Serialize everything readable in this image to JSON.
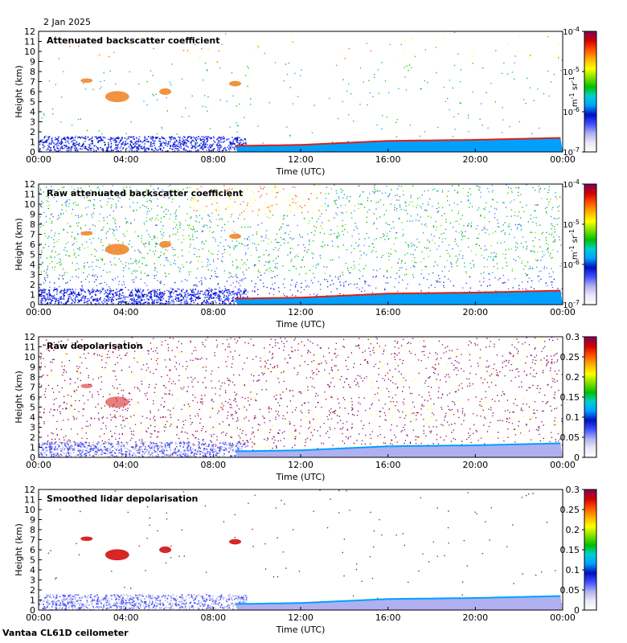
{
  "figure": {
    "date_label": "2 Jan 2025",
    "footer_label": "Vantaa CL61D ceilometer"
  },
  "colors": {
    "colormap": [
      "#ffffff",
      "#e8e8f8",
      "#b0b0f0",
      "#4050ff",
      "#0010c0",
      "#00a0ff",
      "#00d0d0",
      "#00c000",
      "#80e000",
      "#ffff00",
      "#ffb000",
      "#ff5000",
      "#d00000",
      "#800060"
    ],
    "cloud_red": "#e02010",
    "aerosol_orange": "#f08020"
  },
  "chart_data": [
    {
      "type": "heatmap",
      "title": "Attenuated backscatter coefficient",
      "xlabel": "Time (UTC)",
      "ylabel": "Height (km)",
      "x_ticks": [
        "00:00",
        "04:00",
        "08:00",
        "12:00",
        "16:00",
        "20:00",
        "00:00"
      ],
      "xlim_hours": [
        0,
        24
      ],
      "ylim": [
        0,
        12
      ],
      "y_ticks": [
        "0",
        "1",
        "2",
        "3",
        "4",
        "5",
        "6",
        "7",
        "8",
        "9",
        "10",
        "11",
        "12"
      ],
      "colorbar": {
        "scale": "log",
        "range": [
          1e-07,
          0.0001
        ],
        "ticks": [
          "10-7",
          "10-6",
          "10-5",
          "10-4"
        ],
        "tick_bases": [
          "10",
          "10",
          "10",
          "10"
        ],
        "tick_exps": [
          "-7",
          "-6",
          "-5",
          "-4"
        ],
        "unit": "m-1 sr-1",
        "unit_parts": [
          "m",
          "-1",
          " sr",
          "-1"
        ]
      },
      "noise_density": 0.12,
      "background": "white"
    },
    {
      "type": "heatmap",
      "title": "Raw attenuated backscatter coefficient",
      "xlabel": "Time (UTC)",
      "ylabel": "Height (km)",
      "x_ticks": [
        "00:00",
        "04:00",
        "08:00",
        "12:00",
        "16:00",
        "20:00",
        "00:00"
      ],
      "xlim_hours": [
        0,
        24
      ],
      "ylim": [
        0,
        12
      ],
      "y_ticks": [
        "0",
        "1",
        "2",
        "3",
        "4",
        "5",
        "6",
        "7",
        "8",
        "9",
        "10",
        "11",
        "12"
      ],
      "colorbar": {
        "scale": "log",
        "range": [
          1e-07,
          0.0001
        ],
        "ticks": [
          "10-7",
          "10-6",
          "10-5",
          "10-4"
        ],
        "tick_bases": [
          "10",
          "10",
          "10",
          "10"
        ],
        "tick_exps": [
          "-7",
          "-6",
          "-5",
          "-4"
        ],
        "unit": "m-1 sr-1",
        "unit_parts": [
          "m",
          "-1",
          " sr",
          "-1"
        ]
      },
      "noise_density": 0.95,
      "background": "noise"
    },
    {
      "type": "heatmap",
      "title": "Raw depolarisation",
      "xlabel": "Time (UTC)",
      "ylabel": "Height (km)",
      "x_ticks": [
        "00:00",
        "04:00",
        "08:00",
        "12:00",
        "16:00",
        "20:00",
        "00:00"
      ],
      "xlim_hours": [
        0,
        24
      ],
      "ylim": [
        0,
        12
      ],
      "y_ticks": [
        "0",
        "1",
        "2",
        "3",
        "4",
        "5",
        "6",
        "7",
        "8",
        "9",
        "10",
        "11",
        "12"
      ],
      "colorbar": {
        "scale": "linear",
        "range": [
          0,
          0.3
        ],
        "ticks": [
          "0",
          "0.05",
          "0.1",
          "0.15",
          "0.2",
          "0.25",
          "0.3"
        ]
      },
      "noise_density": 0.85,
      "background": "purple-noise"
    },
    {
      "type": "heatmap",
      "title": "Smoothed lidar depolarisation",
      "xlabel": "Time (UTC)",
      "ylabel": "Height (km)",
      "x_ticks": [
        "00:00",
        "04:00",
        "08:00",
        "12:00",
        "16:00",
        "20:00",
        "00:00"
      ],
      "xlim_hours": [
        0,
        24
      ],
      "ylim": [
        0,
        12
      ],
      "y_ticks": [
        "0",
        "1",
        "2",
        "3",
        "4",
        "5",
        "6",
        "7",
        "8",
        "9",
        "10",
        "11",
        "12"
      ],
      "colorbar": {
        "scale": "linear",
        "range": [
          0,
          0.3
        ],
        "ticks": [
          "0",
          "0.05",
          "0.1",
          "0.15",
          "0.2",
          "0.25",
          "0.3"
        ]
      },
      "noise_density": 0.05,
      "background": "white"
    }
  ],
  "features": {
    "cloud_layer_km": [
      [
        0,
        0.0
      ],
      [
        9,
        0.6
      ],
      [
        12,
        0.7
      ],
      [
        16,
        1.1
      ],
      [
        20,
        1.2
      ],
      [
        24,
        1.4
      ]
    ],
    "aerosol_patches": [
      {
        "t": 3.6,
        "h": 5.5,
        "dt": 1.0,
        "dh": 1.0
      },
      {
        "t": 2.2,
        "h": 7.1,
        "dt": 0.5,
        "dh": 0.4
      },
      {
        "t": 5.8,
        "h": 6.0,
        "dt": 0.5,
        "dh": 0.6
      },
      {
        "t": 9.0,
        "h": 6.8,
        "dt": 0.5,
        "dh": 0.5
      }
    ],
    "boundary_layer_km": 1.6
  }
}
